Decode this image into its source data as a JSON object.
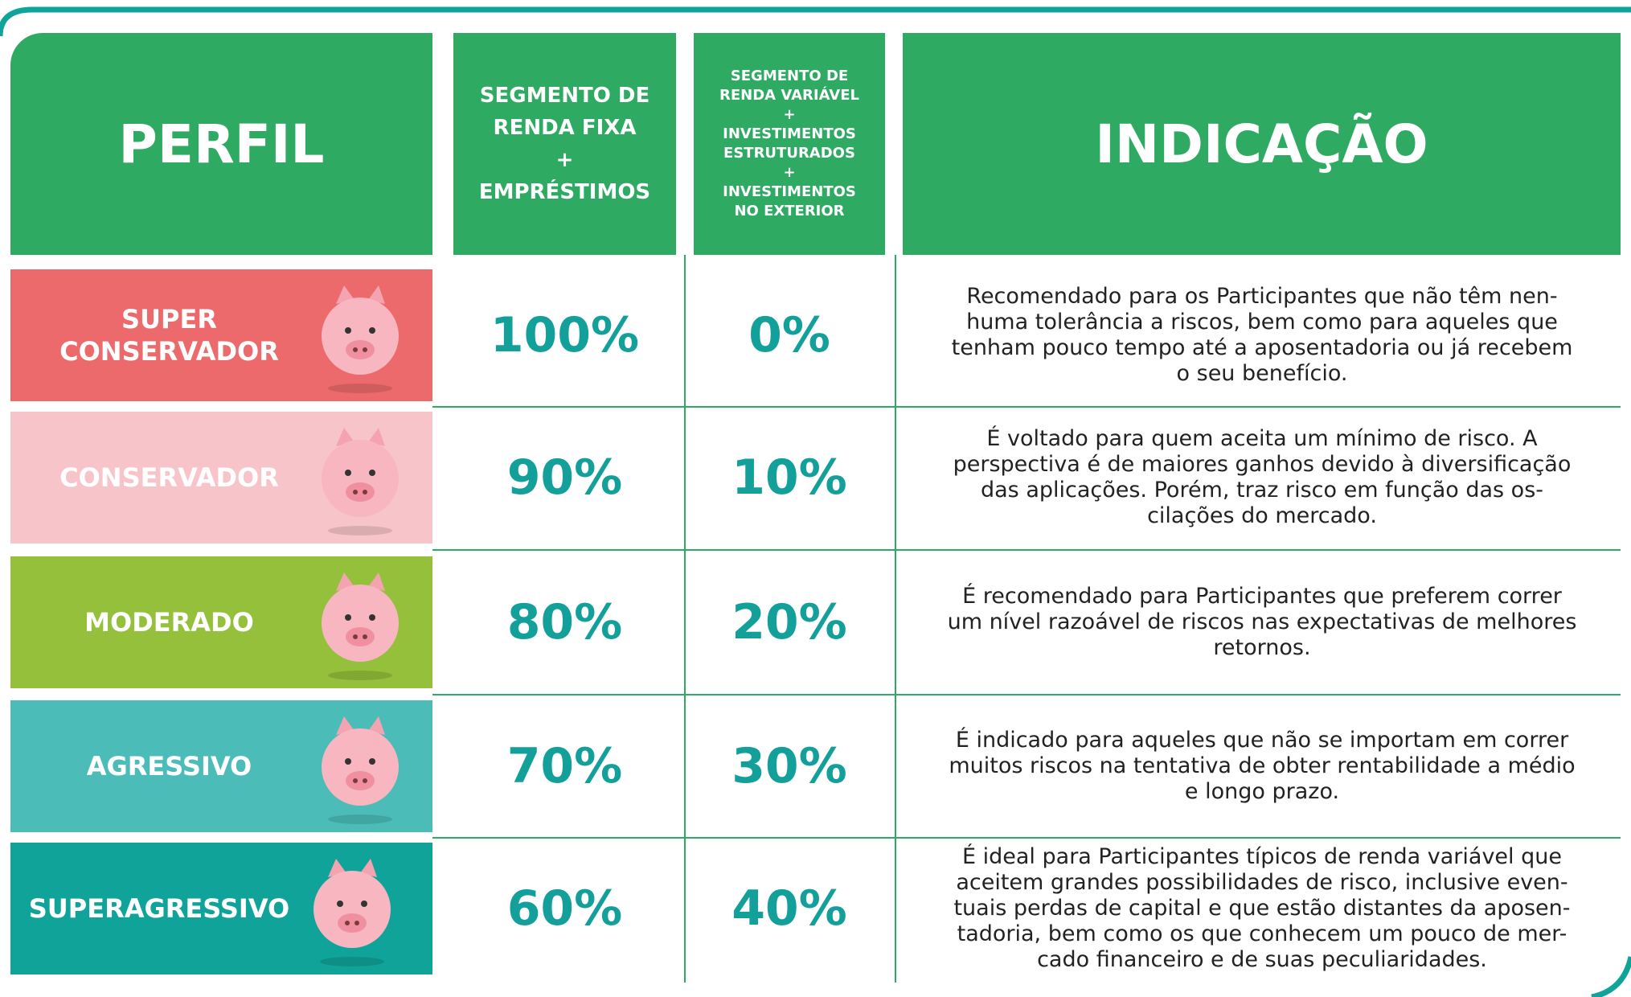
{
  "header": {
    "profile": "PERFIL",
    "fixed_income": [
      "SEGMENTO DE",
      "RENDA FIXA",
      "+",
      "EMPRÉSTIMOS"
    ],
    "variable_income": [
      "SEGMENTO DE",
      "RENDA VARIÁVEL",
      "+",
      "INVESTIMENTOS",
      "ESTRUTURADOS",
      "+",
      "INVESTIMENTOS",
      "NO EXTERIOR"
    ],
    "indication": "INDICAÇÃO"
  },
  "rows": [
    {
      "profile": [
        "SUPER",
        "CONSERVADOR"
      ],
      "fixed": "100%",
      "variable": "0%",
      "description": [
        "Recomendado para os Participantes que não têm nen-",
        "huma tolerância a riscos, bem como para aqueles que",
        "tenham pouco tempo até a aposentadoria ou já recebem",
        "o seu benefício."
      ]
    },
    {
      "profile": [
        "CONSERVADOR"
      ],
      "fixed": "90%",
      "variable": "10%",
      "description": [
        "É voltado para quem aceita um mínimo de risco. A",
        "perspectiva é de maiores ganhos devido à diversificação",
        "das aplicações. Porém, traz risco em função das os-",
        "cilações do mercado."
      ]
    },
    {
      "profile": [
        "MODERADO"
      ],
      "fixed": "80%",
      "variable": "20%",
      "description": [
        "É recomendado para Participantes que preferem correr",
        "um nível razoável de riscos nas expectativas de melhores",
        "retornos."
      ]
    },
    {
      "profile": [
        "AGRESSIVO"
      ],
      "fixed": "70%",
      "variable": "30%",
      "description": [
        "É indicado para aqueles que não se importam em correr",
        "muitos riscos na tentativa de obter rentabilidade a médio",
        "e longo prazo."
      ]
    },
    {
      "profile": [
        "SUPERAGRESSIVO"
      ],
      "fixed": "60%",
      "variable": "40%",
      "description": [
        "É ideal para Participantes típicos de renda variável que",
        "aceitem grandes possibilidades de risco, inclusive even-",
        "tuais perdas de capital e que estão distantes da aposen-",
        "tadoria, bem como os que conhecem um pouco de mer-",
        "cado financeiro e de suas peculiaridades."
      ]
    }
  ]
}
